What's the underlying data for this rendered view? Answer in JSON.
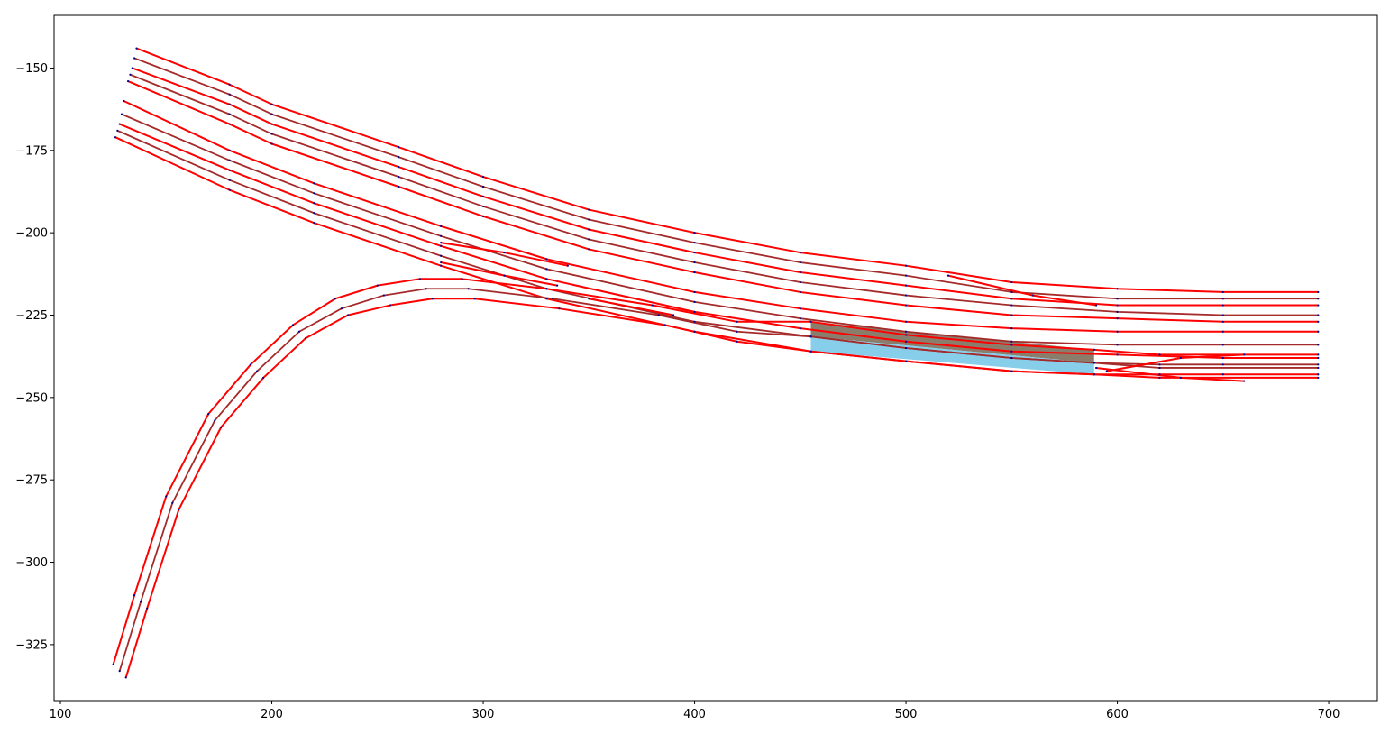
{
  "chart_data": {
    "type": "line",
    "title": "",
    "xlabel": "",
    "ylabel": "",
    "xlim": [
      97,
      723
    ],
    "ylim": [
      -342,
      -134
    ],
    "grid": false,
    "x_ticks": [
      100,
      200,
      300,
      400,
      500,
      600,
      700
    ],
    "x_tick_labels": [
      "100",
      "200",
      "300",
      "400",
      "500",
      "600",
      "700"
    ],
    "y_ticks": [
      -150,
      -175,
      -200,
      -225,
      -250,
      -275,
      -300,
      -325
    ],
    "y_tick_labels": [
      "−150",
      "−175",
      "−200",
      "−225",
      "−250",
      "−275",
      "−300",
      "−325"
    ],
    "colors": {
      "boundary": "#ff0000",
      "centerline": "#a52a2a",
      "highlight_upper": "#8b7d6b",
      "highlight_lower": "#87ceeb",
      "point": "#00008b",
      "axes": "#000000"
    },
    "highlighted_region": {
      "x_start": 455,
      "x_end": 589,
      "upper_left": -227,
      "mid_left": -231.5,
      "lower_left": -236,
      "upper_right": -235.5,
      "mid_right": -239.5,
      "lower_right": -243
    },
    "series": [
      {
        "role": "boundary",
        "points": [
          [
            136,
            -144
          ],
          [
            180,
            -155
          ],
          [
            200,
            -161
          ],
          [
            260,
            -174
          ],
          [
            300,
            -183
          ],
          [
            350,
            -193
          ],
          [
            400,
            -200
          ],
          [
            450,
            -206
          ],
          [
            500,
            -210
          ],
          [
            550,
            -215
          ],
          [
            600,
            -217
          ],
          [
            650,
            -218
          ],
          [
            695,
            -218
          ]
        ]
      },
      {
        "role": "centerline",
        "points": [
          [
            135,
            -147
          ],
          [
            180,
            -158
          ],
          [
            200,
            -164
          ],
          [
            260,
            -177
          ],
          [
            300,
            -186
          ],
          [
            350,
            -196
          ],
          [
            400,
            -203
          ],
          [
            450,
            -209
          ],
          [
            500,
            -213
          ],
          [
            550,
            -218
          ],
          [
            600,
            -220
          ],
          [
            650,
            -220
          ],
          [
            695,
            -220
          ]
        ]
      },
      {
        "role": "boundary",
        "points": [
          [
            134,
            -150
          ],
          [
            180,
            -161
          ],
          [
            200,
            -167
          ],
          [
            260,
            -180
          ],
          [
            300,
            -189
          ],
          [
            350,
            -199
          ],
          [
            400,
            -206
          ],
          [
            450,
            -212
          ],
          [
            500,
            -216
          ],
          [
            550,
            -220
          ],
          [
            600,
            -222
          ],
          [
            650,
            -222
          ],
          [
            695,
            -222
          ]
        ]
      },
      {
        "role": "centerline",
        "points": [
          [
            133,
            -152
          ],
          [
            180,
            -164
          ],
          [
            200,
            -170
          ],
          [
            260,
            -183
          ],
          [
            300,
            -192
          ],
          [
            350,
            -202
          ],
          [
            400,
            -209
          ],
          [
            450,
            -215
          ],
          [
            500,
            -219
          ],
          [
            550,
            -222
          ],
          [
            600,
            -224
          ],
          [
            650,
            -225
          ],
          [
            695,
            -225
          ]
        ]
      },
      {
        "role": "boundary",
        "points": [
          [
            132,
            -154
          ],
          [
            180,
            -167
          ],
          [
            200,
            -173
          ],
          [
            260,
            -186
          ],
          [
            300,
            -195
          ],
          [
            350,
            -205
          ],
          [
            400,
            -212
          ],
          [
            450,
            -218
          ],
          [
            500,
            -222
          ],
          [
            550,
            -225
          ],
          [
            600,
            -226
          ],
          [
            650,
            -227
          ],
          [
            695,
            -227
          ]
        ]
      },
      {
        "role": "boundary",
        "points": [
          [
            130,
            -160
          ],
          [
            180,
            -175
          ],
          [
            220,
            -185
          ],
          [
            280,
            -198
          ],
          [
            330,
            -208
          ],
          [
            400,
            -218
          ],
          [
            450,
            -223
          ],
          [
            500,
            -227
          ],
          [
            550,
            -229
          ],
          [
            600,
            -230
          ],
          [
            650,
            -230
          ],
          [
            695,
            -230
          ]
        ]
      },
      {
        "role": "centerline",
        "points": [
          [
            129,
            -164
          ],
          [
            180,
            -178
          ],
          [
            220,
            -188
          ],
          [
            280,
            -201
          ],
          [
            330,
            -211
          ],
          [
            400,
            -221
          ],
          [
            450,
            -226
          ],
          [
            500,
            -230
          ],
          [
            550,
            -233
          ],
          [
            600,
            -234
          ],
          [
            650,
            -234
          ],
          [
            695,
            -234
          ]
        ]
      },
      {
        "role": "boundary",
        "points": [
          [
            128,
            -167
          ],
          [
            180,
            -181
          ],
          [
            220,
            -191
          ],
          [
            280,
            -204
          ],
          [
            330,
            -214
          ],
          [
            400,
            -224
          ],
          [
            450,
            -229
          ],
          [
            500,
            -233
          ],
          [
            550,
            -236
          ],
          [
            600,
            -237
          ],
          [
            650,
            -238
          ],
          [
            695,
            -238
          ]
        ]
      },
      {
        "role": "centerline",
        "points": [
          [
            127,
            -169
          ],
          [
            180,
            -184
          ],
          [
            220,
            -194
          ],
          [
            280,
            -207
          ],
          [
            330,
            -217
          ],
          [
            400,
            -227
          ],
          [
            455,
            -231.5
          ],
          [
            500,
            -235
          ],
          [
            550,
            -238
          ],
          [
            589,
            -239.5
          ],
          [
            620,
            -240
          ],
          [
            650,
            -240
          ],
          [
            695,
            -240
          ]
        ]
      },
      {
        "role": "boundary",
        "points": [
          [
            126,
            -171
          ],
          [
            180,
            -187
          ],
          [
            220,
            -197
          ],
          [
            280,
            -210
          ],
          [
            330,
            -220
          ],
          [
            400,
            -230
          ],
          [
            455,
            -236
          ],
          [
            500,
            -239
          ],
          [
            550,
            -242
          ],
          [
            589,
            -243
          ],
          [
            620,
            -243
          ],
          [
            650,
            -243
          ],
          [
            695,
            -243
          ]
        ]
      },
      {
        "role": "boundary",
        "points": [
          [
            125,
            -331
          ],
          [
            135,
            -310
          ],
          [
            150,
            -280
          ],
          [
            170,
            -255
          ],
          [
            190,
            -240
          ],
          [
            210,
            -228
          ],
          [
            230,
            -220
          ],
          [
            250,
            -216
          ],
          [
            270,
            -214
          ],
          [
            290,
            -214
          ],
          [
            330,
            -217
          ],
          [
            380,
            -222
          ],
          [
            420,
            -227
          ],
          [
            455,
            -227
          ],
          [
            500,
            -231
          ],
          [
            550,
            -234
          ],
          [
            589,
            -235.5
          ],
          [
            620,
            -237
          ],
          [
            695,
            -237
          ]
        ]
      },
      {
        "role": "centerline",
        "points": [
          [
            128,
            -333
          ],
          [
            138,
            -312
          ],
          [
            153,
            -282
          ],
          [
            173,
            -257
          ],
          [
            193,
            -242
          ],
          [
            213,
            -230
          ],
          [
            233,
            -223
          ],
          [
            253,
            -219
          ],
          [
            273,
            -217
          ],
          [
            293,
            -217
          ],
          [
            333,
            -220
          ],
          [
            383,
            -225
          ],
          [
            420,
            -230
          ],
          [
            455,
            -231.5
          ],
          [
            500,
            -235
          ],
          [
            550,
            -238
          ],
          [
            589,
            -239.5
          ],
          [
            620,
            -241
          ],
          [
            695,
            -241
          ]
        ]
      },
      {
        "role": "boundary",
        "points": [
          [
            131,
            -335
          ],
          [
            141,
            -314
          ],
          [
            156,
            -284
          ],
          [
            176,
            -259
          ],
          [
            196,
            -244
          ],
          [
            216,
            -232
          ],
          [
            236,
            -225
          ],
          [
            256,
            -222
          ],
          [
            276,
            -220
          ],
          [
            296,
            -220
          ],
          [
            336,
            -223
          ],
          [
            386,
            -228
          ],
          [
            420,
            -233
          ],
          [
            455,
            -236
          ],
          [
            500,
            -239
          ],
          [
            550,
            -242
          ],
          [
            589,
            -243
          ],
          [
            620,
            -244
          ],
          [
            695,
            -244
          ]
        ]
      },
      {
        "role": "boundary",
        "points": [
          [
            280,
            -203
          ],
          [
            310,
            -206
          ],
          [
            340,
            -210
          ]
        ]
      },
      {
        "role": "boundary",
        "points": [
          [
            280,
            -209
          ],
          [
            310,
            -213
          ],
          [
            335,
            -216
          ]
        ]
      },
      {
        "role": "boundary",
        "points": [
          [
            350,
            -220
          ],
          [
            390,
            -225
          ]
        ]
      },
      {
        "role": "boundary",
        "points": [
          [
            520,
            -213
          ],
          [
            560,
            -219
          ],
          [
            590,
            -222
          ]
        ]
      },
      {
        "role": "boundary",
        "points": [
          [
            595,
            -242
          ],
          [
            630,
            -238
          ],
          [
            660,
            -237
          ]
        ]
      },
      {
        "role": "boundary",
        "points": [
          [
            590,
            -241
          ],
          [
            630,
            -244
          ],
          [
            660,
            -245
          ]
        ]
      }
    ]
  }
}
